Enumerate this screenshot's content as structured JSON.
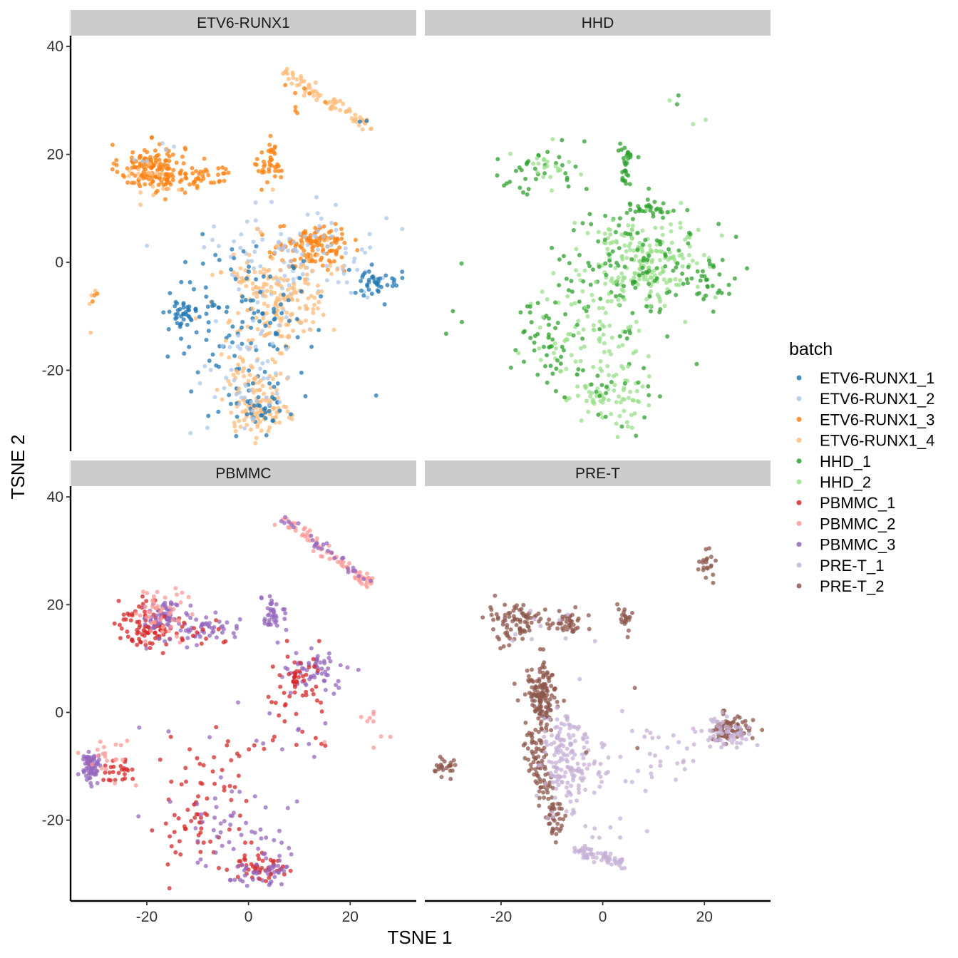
{
  "chart_data": {
    "type": "scatter",
    "title": "",
    "xlabel": "TSNE 1",
    "ylabel": "TSNE 2",
    "xlim": [
      -35,
      33
    ],
    "ylim": [
      -35,
      42
    ],
    "xticks": [
      -20,
      0,
      20
    ],
    "xtick_labels": [
      "-20",
      "0",
      "20"
    ],
    "yticks": [
      -20,
      0,
      20,
      40
    ],
    "ytick_labels": [
      "-20",
      "0",
      "20",
      "40"
    ],
    "grid": false,
    "legend": {
      "title": "batch",
      "position": "right",
      "entries": [
        {
          "name": "ETV6-RUNX1_1",
          "color": "#1f77b4"
        },
        {
          "name": "ETV6-RUNX1_2",
          "color": "#aec7e8"
        },
        {
          "name": "ETV6-RUNX1_3",
          "color": "#ff7f0e"
        },
        {
          "name": "ETV6-RUNX1_4",
          "color": "#ffbb78"
        },
        {
          "name": "HHD_1",
          "color": "#2ca02c"
        },
        {
          "name": "HHD_2",
          "color": "#98df8a"
        },
        {
          "name": "PBMMC_1",
          "color": "#d62728"
        },
        {
          "name": "PBMMC_2",
          "color": "#ff9896"
        },
        {
          "name": "PBMMC_3",
          "color": "#9467bd"
        },
        {
          "name": "PRE-T_1",
          "color": "#c5b0d5"
        },
        {
          "name": "PRE-T_2",
          "color": "#8c564b"
        }
      ]
    },
    "panels": [
      {
        "name": "ETV6-RUNX1",
        "clusters": [
          {
            "series": "ETV6-RUNX1_3",
            "n": 150,
            "cx": -19,
            "cy": 17.5,
            "sx": 3.2,
            "sy": 2.2
          },
          {
            "series": "ETV6-RUNX1_3",
            "n": 40,
            "cx": -9,
            "cy": 16,
            "sx": 3,
            "sy": 1.2
          },
          {
            "series": "ETV6-RUNX1_4",
            "n": 20,
            "cx": -19,
            "cy": 16,
            "sx": 3,
            "sy": 2.5
          },
          {
            "series": "ETV6-RUNX1_2",
            "n": 6,
            "cx": -19,
            "cy": 19,
            "sx": 3,
            "sy": 2
          },
          {
            "series": "ETV6-RUNX1_3",
            "n": 40,
            "cx": 4.5,
            "cy": 18,
            "sx": 1.3,
            "sy": 2
          },
          {
            "series": "ETV6-RUNX1_4",
            "n": 70,
            "line": [
              [
                6.5,
                35.5
              ],
              [
                24,
                25
              ]
            ],
            "spread": 0.7
          },
          {
            "series": "ETV6-RUNX1_3",
            "n": 5,
            "line": [
              [
                7,
                34
              ],
              [
                15,
                29
              ]
            ],
            "spread": 0.6
          },
          {
            "series": "ETV6-RUNX1_1",
            "n": 2,
            "line": [
              [
                22,
                26
              ],
              [
                23.5,
                25.5
              ]
            ],
            "spread": 0.3
          },
          {
            "series": "ETV6-RUNX1_3",
            "n": 120,
            "cx": 12,
            "cy": 3,
            "sx": 4,
            "sy": 2
          },
          {
            "series": "ETV6-RUNX1_2",
            "n": 120,
            "cx": 10,
            "cy": 1,
            "sx": 8,
            "sy": 5
          },
          {
            "series": "ETV6-RUNX1_4",
            "n": 180,
            "cx": 6,
            "cy": -6,
            "sx": 5,
            "sy": 5
          },
          {
            "series": "ETV6-RUNX1_1",
            "n": 110,
            "cx": -1,
            "cy": -11,
            "sx": 7,
            "sy": 6
          },
          {
            "series": "ETV6-RUNX1_1",
            "n": 40,
            "cx": -13,
            "cy": -10,
            "sx": 2,
            "sy": 1.5
          },
          {
            "series": "ETV6-RUNX1_1",
            "n": 40,
            "cx": 25,
            "cy": -4,
            "sx": 2.5,
            "sy": 1.5
          },
          {
            "series": "ETV6-RUNX1_4",
            "n": 80,
            "cx": 0,
            "cy": -22,
            "sx": 3,
            "sy": 5
          },
          {
            "series": "ETV6-RUNX1_4",
            "n": 60,
            "cx": 3,
            "cy": -28,
            "sx": 2.5,
            "sy": 2
          },
          {
            "series": "ETV6-RUNX1_1",
            "n": 40,
            "cx": 2,
            "cy": -27,
            "sx": 4,
            "sy": 2.5
          },
          {
            "series": "ETV6-RUNX1_2",
            "n": 50,
            "cx": 0,
            "cy": -20,
            "sx": 5,
            "sy": 6
          },
          {
            "series": "ETV6-RUNX1_4",
            "n": 4,
            "cx": -31,
            "cy": -7.5,
            "sx": 0.6,
            "sy": 2
          },
          {
            "series": "ETV6-RUNX1_3",
            "n": 3,
            "cx": -30.5,
            "cy": -6,
            "sx": 0.6,
            "sy": 1
          },
          {
            "series": "ETV6-RUNX1_3",
            "n": 3,
            "cx": 9,
            "cy": 28.5,
            "sx": 0.5,
            "sy": 0.5
          }
        ]
      },
      {
        "name": "HHD",
        "clusters": [
          {
            "series": "HHD_1",
            "n": 35,
            "cx": -12,
            "cy": 17,
            "sx": 5,
            "sy": 2.5
          },
          {
            "series": "HHD_2",
            "n": 20,
            "cx": -10,
            "cy": 17,
            "sx": 4,
            "sy": 2
          },
          {
            "series": "HHD_1",
            "n": 30,
            "cx": 4.5,
            "cy": 18.5,
            "sx": 1,
            "sy": 2
          },
          {
            "series": "HHD_1",
            "n": 30,
            "cx": 9,
            "cy": 10,
            "sx": 2,
            "sy": 1.2
          },
          {
            "series": "HHD_2",
            "n": 200,
            "cx": 8,
            "cy": 0,
            "sx": 6,
            "sy": 4
          },
          {
            "series": "HHD_1",
            "n": 120,
            "cx": 6,
            "cy": -2,
            "sx": 9,
            "sy": 6
          },
          {
            "series": "HHD_1",
            "n": 30,
            "cx": 21,
            "cy": -3,
            "sx": 3,
            "sy": 2
          },
          {
            "series": "HHD_2",
            "n": 80,
            "cx": -3,
            "cy": -13,
            "sx": 5,
            "sy": 5
          },
          {
            "series": "HHD_1",
            "n": 40,
            "cx": -11,
            "cy": -15,
            "sx": 3,
            "sy": 4
          },
          {
            "series": "HHD_2",
            "n": 70,
            "cx": 2,
            "cy": -25,
            "sx": 4,
            "sy": 3
          },
          {
            "series": "HHD_1",
            "n": 30,
            "cx": 1,
            "cy": -22,
            "sx": 6,
            "sy": 5
          },
          {
            "series": "HHD_1",
            "n": 4,
            "cx": -28,
            "cy": -8,
            "sx": 1.5,
            "sy": 3
          },
          {
            "series": "HHD_1",
            "n": 2,
            "cx": 15.5,
            "cy": 30,
            "sx": 0.4,
            "sy": 0.6
          },
          {
            "series": "HHD_2",
            "n": 3,
            "cx": 19,
            "cy": 27,
            "sx": 2.5,
            "sy": 3
          }
        ]
      },
      {
        "name": "PBMMC",
        "clusters": [
          {
            "series": "PBMMC_1",
            "n": 90,
            "cx": -20,
            "cy": 16,
            "sx": 2.3,
            "sy": 2.3
          },
          {
            "series": "PBMMC_3",
            "n": 70,
            "cx": -16,
            "cy": 18,
            "sx": 2,
            "sy": 2
          },
          {
            "series": "PBMMC_2",
            "n": 50,
            "cx": -17,
            "cy": 19,
            "sx": 2.5,
            "sy": 2.5
          },
          {
            "series": "PBMMC_3",
            "n": 40,
            "cx": -8,
            "cy": 16,
            "sx": 3,
            "sy": 1.2
          },
          {
            "series": "PBMMC_1",
            "n": 15,
            "cx": -10,
            "cy": 15,
            "sx": 3,
            "sy": 1.5
          },
          {
            "series": "PBMMC_3",
            "n": 40,
            "cx": 5,
            "cy": 18,
            "sx": 1.2,
            "sy": 1.5
          },
          {
            "series": "PBMMC_2",
            "n": 70,
            "line": [
              [
                6.5,
                36
              ],
              [
                24.5,
                23.5
              ]
            ],
            "spread": 0.7
          },
          {
            "series": "PBMMC_3",
            "n": 30,
            "line": [
              [
                7,
                36
              ],
              [
                24,
                24
              ]
            ],
            "spread": 0.5
          },
          {
            "series": "PBMMC_3",
            "n": 60,
            "cx": 13,
            "cy": 8,
            "sx": 3,
            "sy": 2
          },
          {
            "series": "PBMMC_1",
            "n": 50,
            "cx": 9,
            "cy": 5,
            "sx": 2.5,
            "sy": 3
          },
          {
            "series": "PBMMC_3",
            "n": 70,
            "cx": -31,
            "cy": -10,
            "sx": 1,
            "sy": 1.5
          },
          {
            "series": "PBMMC_1",
            "n": 25,
            "cx": -26,
            "cy": -11,
            "sx": 2,
            "sy": 1
          },
          {
            "series": "PBMMC_2",
            "n": 20,
            "cx": -28,
            "cy": -9,
            "sx": 2.5,
            "sy": 2
          },
          {
            "series": "PBMMC_1",
            "n": 70,
            "cx": -9,
            "cy": -18,
            "sx": 5,
            "sy": 6
          },
          {
            "series": "PBMMC_3",
            "n": 50,
            "cx": -3,
            "cy": -22,
            "sx": 6,
            "sy": 5
          },
          {
            "series": "PBMMC_1",
            "n": 50,
            "cx": 2,
            "cy": -29,
            "sx": 3,
            "sy": 1.2
          },
          {
            "series": "PBMMC_3",
            "n": 40,
            "cx": 3,
            "cy": -29,
            "sx": 3,
            "sy": 1.5
          },
          {
            "series": "PBMMC_1",
            "n": 15,
            "cx": 8,
            "cy": -5,
            "sx": 8,
            "sy": 2
          },
          {
            "series": "PBMMC_3",
            "n": 15,
            "cx": 6,
            "cy": -3,
            "sx": 10,
            "sy": 4
          },
          {
            "series": "PBMMC_2",
            "n": 10,
            "cx": 24,
            "cy": -3,
            "sx": 3,
            "sy": 2
          }
        ]
      },
      {
        "name": "PRE-T",
        "clusters": [
          {
            "series": "PRE-T_2",
            "n": 80,
            "cx": -17,
            "cy": 17,
            "sx": 3,
            "sy": 2
          },
          {
            "series": "PRE-T_2",
            "n": 40,
            "cx": -7,
            "cy": 16.5,
            "sx": 2,
            "sy": 1
          },
          {
            "series": "PRE-T_2",
            "n": 20,
            "cx": 4.5,
            "cy": 18,
            "sx": 1,
            "sy": 1.2
          },
          {
            "series": "PRE-T_2",
            "n": 20,
            "cx": 20.5,
            "cy": 27,
            "sx": 1.5,
            "sy": 1.5
          },
          {
            "series": "PRE-T_1",
            "n": 10,
            "cx": -12,
            "cy": 14,
            "sx": 5,
            "sy": 3
          },
          {
            "series": "PRE-T_2",
            "n": 140,
            "cx": -12,
            "cy": 3,
            "sx": 1.5,
            "sy": 3
          },
          {
            "series": "PRE-T_2",
            "n": 110,
            "line": [
              [
                -14,
                -4
              ],
              [
                -9,
                -22
              ]
            ],
            "spread": 1
          },
          {
            "series": "PRE-T_1",
            "n": 150,
            "cx": -7,
            "cy": -8,
            "sx": 3,
            "sy": 4
          },
          {
            "series": "PRE-T_1",
            "n": 60,
            "line": [
              [
                -6,
                -25
              ],
              [
                4,
                -28
              ]
            ],
            "spread": 0.6
          },
          {
            "series": "PRE-T_1",
            "n": 40,
            "cx": -3,
            "cy": -15,
            "sx": 5,
            "sy": 6
          },
          {
            "series": "PRE-T_2",
            "n": 70,
            "cx": 25,
            "cy": -3,
            "sx": 2.5,
            "sy": 1.3
          },
          {
            "series": "PRE-T_1",
            "n": 60,
            "cx": 24,
            "cy": -4,
            "sx": 2.5,
            "sy": 1.5
          },
          {
            "series": "PRE-T_1",
            "n": 25,
            "cx": 12,
            "cy": -7,
            "sx": 5,
            "sy": 3
          },
          {
            "series": "PRE-T_2",
            "n": 25,
            "cx": -31,
            "cy": -10,
            "sx": 1,
            "sy": 1
          },
          {
            "series": "PRE-T_2",
            "n": 3,
            "cx": 4,
            "cy": 0,
            "sx": 4,
            "sy": 4
          }
        ]
      }
    ]
  }
}
